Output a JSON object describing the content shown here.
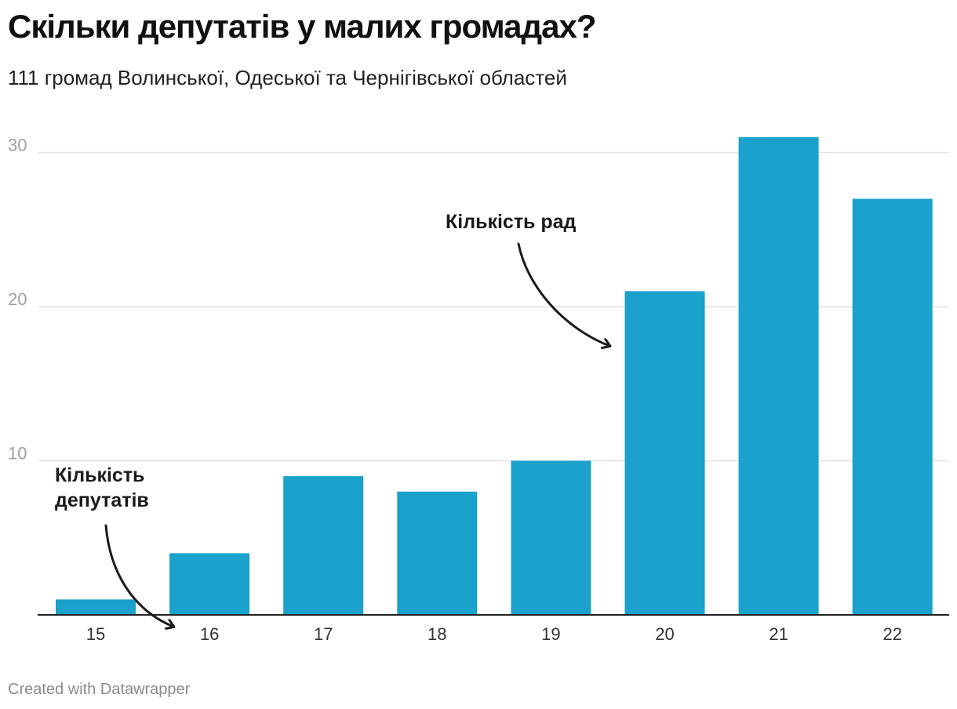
{
  "header": {
    "title": "Скільки депутатів у малих громадах?",
    "subtitle": "111 громад Волинської, Одеської та Чернігівської областей"
  },
  "footer": {
    "credit": "Created with Datawrapper"
  },
  "colors": {
    "bar": "#1aa1cc",
    "grid": "#e2e2e2",
    "axis": "#222222"
  },
  "chart_data": {
    "type": "bar",
    "title": "Скільки депутатів у малих громадах?",
    "xlabel": "",
    "ylabel": "",
    "categories": [
      "15",
      "16",
      "17",
      "18",
      "19",
      "20",
      "21",
      "22"
    ],
    "values": [
      1,
      4,
      9,
      8,
      10,
      21,
      31,
      27
    ],
    "ylim": [
      0,
      32
    ],
    "yticks": [
      "10",
      "20",
      "30"
    ],
    "grid": true,
    "annotations": {
      "councils": "Кількість рад",
      "deputies_line1": "Кількість",
      "deputies_line2": "депутатів"
    }
  }
}
